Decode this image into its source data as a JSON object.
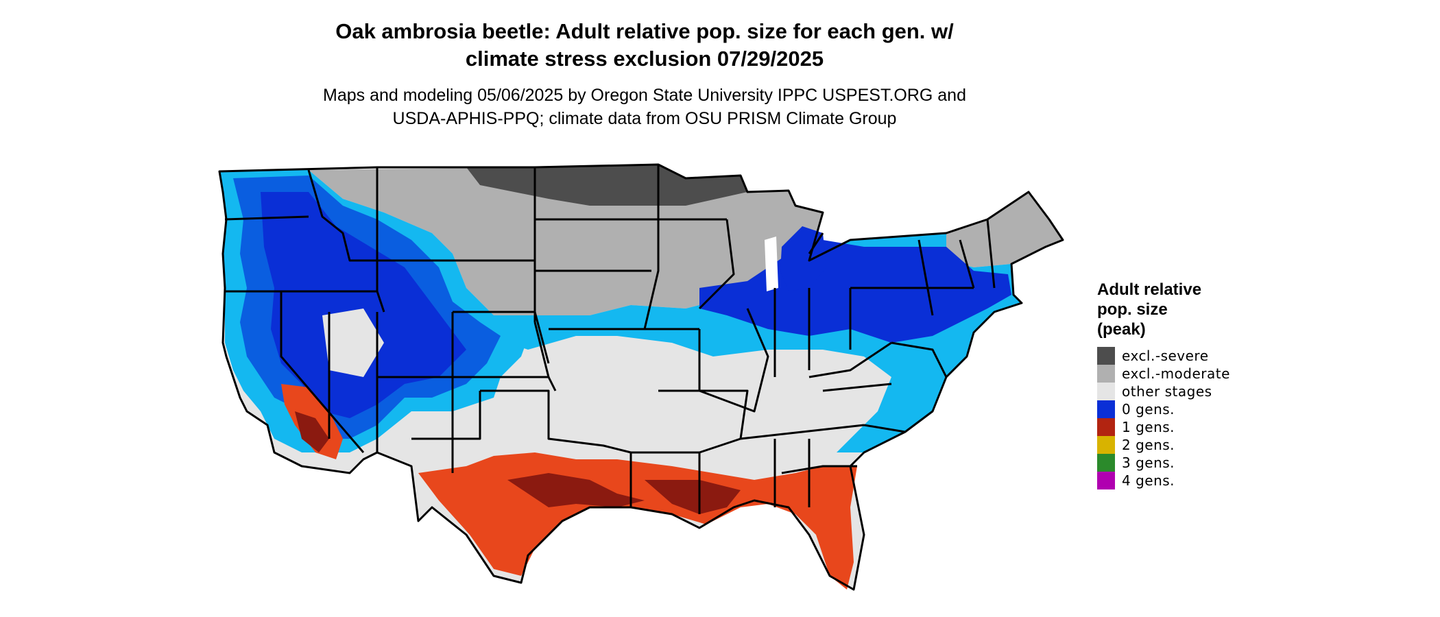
{
  "header": {
    "title_line1": "Oak ambrosia beetle: Adult relative pop. size for each gen. w/",
    "title_line2": "climate stress exclusion 07/29/2025",
    "subtitle_line1": "Maps and modeling 05/06/2025 by Oregon State University IPPC USPEST.ORG and",
    "subtitle_line2": "USDA-APHIS-PPQ; climate data from OSU PRISM Climate Group"
  },
  "legend": {
    "title_line1": "Adult relative",
    "title_line2": "pop. size",
    "title_line3": "(peak)",
    "items": [
      {
        "label": "excl.-severe",
        "color": "#4d4d4d"
      },
      {
        "label": "excl.-moderate",
        "color": "#b0b0b0"
      },
      {
        "label": "other stages",
        "color": "#e5e5e5"
      },
      {
        "label": "0 gens.",
        "color": "#0a2fd6"
      },
      {
        "label": "1 gens.",
        "color": "#b22411"
      },
      {
        "label": "2 gens.",
        "color": "#d8b300"
      },
      {
        "label": "3 gens.",
        "color": "#2b8a2b"
      },
      {
        "label": "4 gens.",
        "color": "#b000b0"
      }
    ]
  },
  "map": {
    "colors": {
      "outline": "#000000",
      "light_blue": "#14b8f0",
      "mid_blue": "#0a5ee0",
      "deep_blue": "#0a2fd6",
      "orange": "#e8471c",
      "dark_red": "#8b1a10"
    }
  }
}
